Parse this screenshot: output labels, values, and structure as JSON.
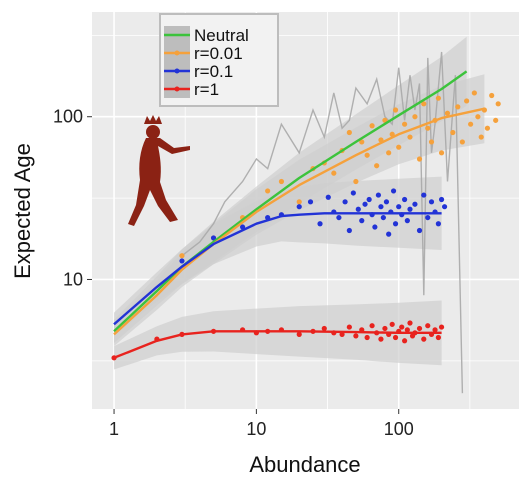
{
  "chart_data": {
    "type": "scatter",
    "title": "",
    "xlabel": "Abundance",
    "ylabel": "Expected Age",
    "x_scale": "log",
    "y_scale": "log",
    "xlim": [
      0.7,
      700
    ],
    "ylim": [
      1.6,
      440
    ],
    "x_ticks": [
      {
        "value": 1,
        "label": "1"
      },
      {
        "value": 10,
        "label": "10"
      },
      {
        "value": 100,
        "label": "100"
      }
    ],
    "y_ticks": [
      {
        "value": 10,
        "label": "10"
      },
      {
        "value": 100,
        "label": "100"
      }
    ],
    "grid": true,
    "legend_position": "top-left",
    "figure_icon": "walking-crowned-figure-icon",
    "colors": {
      "panel": "#ebebeb",
      "grid": "#ffffff",
      "ribbon": "#cfcfcf",
      "raw_line": "#a8a8a8",
      "figure": "#8b2214"
    },
    "series": [
      {
        "name": "Neutral",
        "color": "#3cc33c",
        "fit_x": [
          1,
          2,
          3,
          5,
          10,
          20,
          50,
          100,
          200,
          300
        ],
        "fit_y": [
          4.8,
          8.5,
          12,
          17,
          27,
          42,
          70,
          102,
          148,
          190
        ],
        "points_x": [],
        "points_y": []
      },
      {
        "name": "r=0.01",
        "color": "#f5a13c",
        "fit_x": [
          1,
          2,
          3,
          5,
          10,
          20,
          50,
          100,
          200,
          400
        ],
        "fit_y": [
          4.6,
          8,
          11.5,
          16.5,
          26,
          38,
          58,
          78,
          98,
          112
        ],
        "points_x": [
          3,
          5,
          8,
          12,
          15,
          20,
          25,
          30,
          35,
          40,
          45,
          50,
          55,
          60,
          65,
          70,
          75,
          80,
          85,
          90,
          95,
          100,
          110,
          120,
          130,
          140,
          150,
          160,
          170,
          180,
          190,
          200,
          220,
          240,
          260,
          280,
          300,
          320,
          340,
          360,
          380,
          400,
          420,
          450,
          480,
          500
        ],
        "points_y": [
          14,
          18,
          24,
          35,
          40,
          30,
          48,
          52,
          45,
          62,
          80,
          40,
          70,
          58,
          88,
          50,
          72,
          95,
          60,
          78,
          110,
          65,
          90,
          75,
          100,
          55,
          120,
          85,
          70,
          95,
          130,
          60,
          105,
          80,
          115,
          70,
          125,
          90,
          140,
          100,
          75,
          110,
          85,
          135,
          95,
          120
        ]
      },
      {
        "name": "r=0.1",
        "color": "#2233d6",
        "fit_x": [
          1,
          2,
          3,
          5,
          10,
          15,
          20,
          30,
          50,
          100,
          200
        ],
        "fit_y": [
          5.3,
          9,
          12,
          16.5,
          22,
          24.5,
          25,
          25.5,
          25.5,
          25.5,
          25.5
        ],
        "points_x": [
          3,
          5,
          8,
          12,
          15,
          20,
          24,
          28,
          32,
          35,
          38,
          42,
          45,
          48,
          52,
          55,
          58,
          62,
          65,
          68,
          72,
          75,
          78,
          82,
          85,
          88,
          92,
          95,
          100,
          105,
          110,
          115,
          120,
          130,
          140,
          150,
          160,
          170,
          180,
          190,
          200,
          210
        ],
        "points_y": [
          13,
          18,
          21,
          24,
          25,
          28,
          30,
          22,
          32,
          26,
          24,
          30,
          20,
          34,
          27,
          23,
          29,
          31,
          25,
          21,
          33,
          28,
          24,
          30,
          19,
          26,
          35,
          22,
          28,
          25,
          31,
          23,
          27,
          29,
          20,
          33,
          24,
          30,
          26,
          22,
          31,
          28
        ]
      },
      {
        "name": "r=1",
        "color": "#e8231e",
        "fit_x": [
          1,
          2,
          3,
          5,
          10,
          20,
          50,
          100,
          200
        ],
        "fit_y": [
          3.3,
          4.2,
          4.6,
          4.8,
          4.8,
          4.8,
          4.75,
          4.7,
          4.7
        ],
        "points_x": [
          1,
          2,
          3,
          5,
          8,
          10,
          12,
          15,
          20,
          25,
          30,
          35,
          40,
          45,
          50,
          55,
          60,
          65,
          70,
          75,
          80,
          85,
          90,
          95,
          100,
          105,
          110,
          115,
          120,
          125,
          130,
          140,
          150,
          160,
          170,
          180,
          190,
          200
        ],
        "points_y": [
          3.3,
          4.3,
          4.6,
          4.8,
          4.9,
          4.7,
          4.8,
          4.9,
          4.6,
          4.8,
          5.0,
          4.7,
          4.6,
          5.1,
          4.5,
          4.9,
          4.4,
          5.2,
          4.7,
          4.3,
          5.0,
          4.6,
          5.3,
          4.4,
          4.8,
          5.1,
          4.2,
          4.9,
          5.4,
          4.5,
          4.7,
          5.0,
          4.3,
          5.2,
          4.6,
          4.9,
          4.4,
          5.1
        ]
      }
    ],
    "raw_trace": {
      "x": [
        3,
        4,
        5,
        6,
        8,
        10,
        12,
        15,
        20,
        25,
        30,
        35,
        40,
        45,
        50,
        60,
        70,
        80,
        90,
        100,
        110,
        120,
        130,
        140,
        150,
        160,
        170,
        180,
        200,
        220,
        250,
        280
      ],
      "y": [
        14,
        17,
        22,
        30,
        40,
        55,
        48,
        90,
        60,
        110,
        75,
        140,
        85,
        95,
        150,
        120,
        170,
        100,
        90,
        200,
        95,
        180,
        110,
        160,
        8,
        230,
        60,
        90,
        250,
        40,
        180,
        2
      ]
    }
  }
}
